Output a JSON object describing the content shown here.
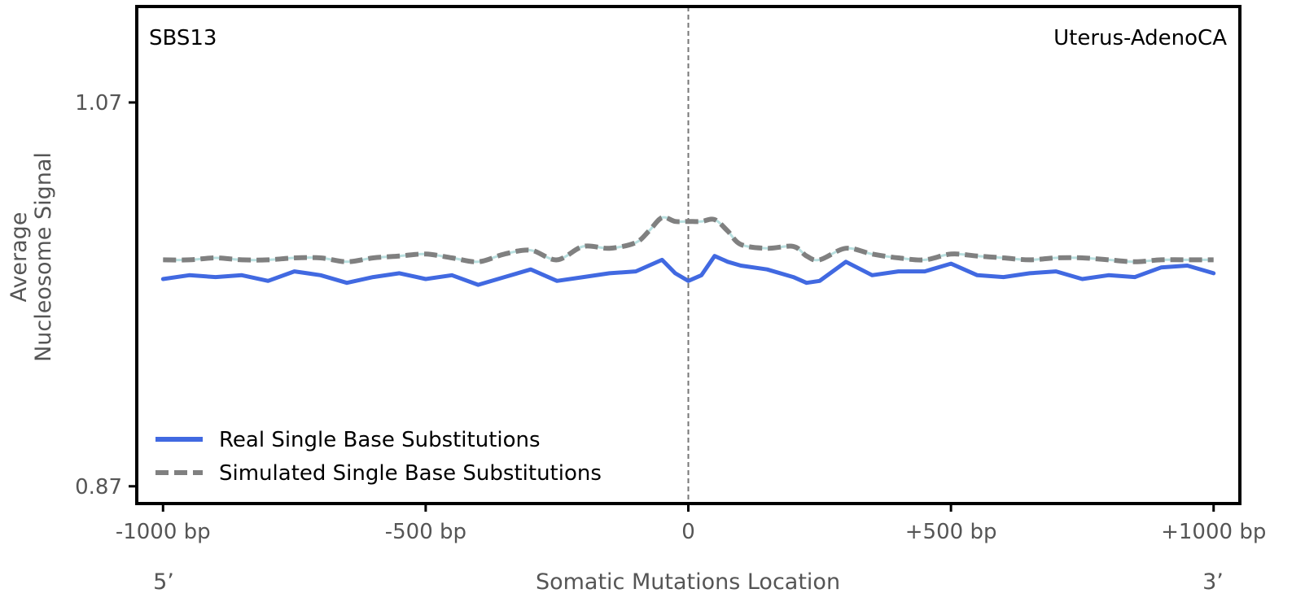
{
  "chart_data": {
    "type": "line",
    "signature_label": "SBS13",
    "cancer_type_label": "Uterus-AdenoCA",
    "xlabel": "Somatic Mutations Location",
    "ylabel_line1": "Average",
    "ylabel_line2": "Nucleosome Signal",
    "strand_left": "5’",
    "strand_right": "3’",
    "xlim": [
      -1050,
      1050
    ],
    "ylim": [
      0.861,
      1.12
    ],
    "x_ticks": [
      -1000,
      -500,
      0,
      500,
      1000
    ],
    "x_tick_labels": [
      "-1000 bp",
      "-500 bp",
      "0",
      "+500 bp",
      "+1000 bp"
    ],
    "y_ticks": [
      0.87,
      1.07
    ],
    "y_tick_labels": [
      "0.87",
      "1.07"
    ],
    "vertical_reference_x": 0,
    "legend_position": "lower-left",
    "series": [
      {
        "name": "Real Single Base Substitutions",
        "style": "solid",
        "color": "#4169E1",
        "x": [
          -1000,
          -950,
          -900,
          -850,
          -800,
          -750,
          -700,
          -650,
          -600,
          -550,
          -500,
          -450,
          -400,
          -350,
          -300,
          -250,
          -200,
          -150,
          -100,
          -75,
          -50,
          -25,
          0,
          25,
          50,
          75,
          100,
          150,
          200,
          225,
          250,
          300,
          350,
          400,
          450,
          500,
          550,
          600,
          650,
          700,
          750,
          800,
          850,
          900,
          950,
          1000
        ],
        "values": [
          0.978,
          0.98,
          0.979,
          0.98,
          0.977,
          0.982,
          0.98,
          0.976,
          0.979,
          0.981,
          0.978,
          0.98,
          0.975,
          0.979,
          0.983,
          0.977,
          0.979,
          0.981,
          0.982,
          0.985,
          0.988,
          0.981,
          0.977,
          0.98,
          0.99,
          0.987,
          0.985,
          0.983,
          0.979,
          0.976,
          0.977,
          0.987,
          0.98,
          0.982,
          0.982,
          0.986,
          0.98,
          0.979,
          0.981,
          0.982,
          0.978,
          0.98,
          0.979,
          0.984,
          0.985,
          0.981
        ]
      },
      {
        "name": "Simulated Single Base Substitutions",
        "style": "dashed",
        "color": "#808080",
        "x": [
          -1000,
          -950,
          -900,
          -850,
          -800,
          -750,
          -700,
          -650,
          -600,
          -550,
          -500,
          -450,
          -400,
          -350,
          -300,
          -250,
          -200,
          -150,
          -100,
          -75,
          -50,
          -25,
          0,
          25,
          50,
          75,
          100,
          150,
          200,
          225,
          250,
          300,
          350,
          400,
          450,
          500,
          550,
          600,
          650,
          700,
          750,
          800,
          850,
          900,
          950,
          1000
        ],
        "values": [
          0.988,
          0.988,
          0.989,
          0.988,
          0.988,
          0.989,
          0.989,
          0.987,
          0.989,
          0.99,
          0.991,
          0.989,
          0.987,
          0.991,
          0.993,
          0.988,
          0.995,
          0.994,
          0.997,
          1.003,
          1.01,
          1.008,
          1.008,
          1.008,
          1.009,
          1.003,
          0.996,
          0.994,
          0.995,
          0.99,
          0.988,
          0.994,
          0.991,
          0.989,
          0.988,
          0.991,
          0.99,
          0.989,
          0.988,
          0.989,
          0.989,
          0.988,
          0.987,
          0.988,
          0.988,
          0.988
        ]
      }
    ]
  }
}
